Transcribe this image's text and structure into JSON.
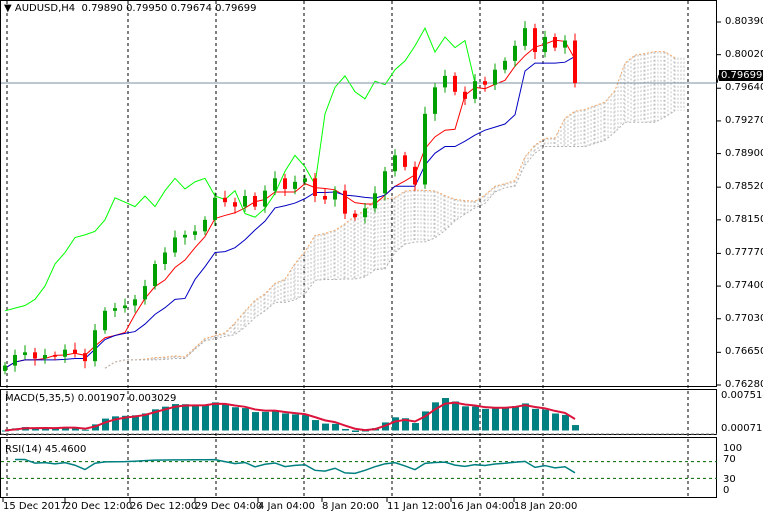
{
  "header": {
    "symbol": "AUDUSD,H4",
    "ohlc": "0.79890 0.79950 0.79674 0.79699"
  },
  "macd": {
    "label": "MACD(5,35,5) 0.001907 0.003029",
    "axis": [
      "0.007514",
      "0.000713"
    ]
  },
  "rsi": {
    "label": "RSI(14) 45.4600",
    "axis": [
      "100",
      "70",
      "30",
      "0"
    ]
  },
  "colors": {
    "bull": "#00a000",
    "bear": "#ff0000",
    "tenkan": "#ff0000",
    "kijun": "#0000c0",
    "chikou": "#00ff00",
    "spanA": "#f4a460",
    "spanB": "#b0b0b0",
    "macd_hist": "#008080",
    "macd_signal": "#dc143c",
    "rsi": "#008080"
  },
  "chart_data": {
    "type": "candlestick",
    "current_price": "0.79699",
    "y_ticks": [
      "0.80390",
      "0.80020",
      "0.79640",
      "0.79270",
      "0.78900",
      "0.78520",
      "0.78150",
      "0.77770",
      "0.77400",
      "0.77030",
      "0.76650",
      "0.76280"
    ],
    "ylim": [
      0.7628,
      0.8039
    ],
    "x_ticks": [
      "15 Dec 2017",
      "20 Dec 12:00",
      "26 Dec 12:00",
      "29 Dec 04:00",
      "4 Jan 04:00",
      "8 Jan 20:00",
      "11 Jan 12:00",
      "16 Jan 04:00",
      "18 Jan 20:00"
    ],
    "closes": [
      0.765,
      0.7662,
      0.7665,
      0.7658,
      0.7662,
      0.766,
      0.7668,
      0.7664,
      0.7655,
      0.769,
      0.7712,
      0.7715,
      0.7718,
      0.7725,
      0.774,
      0.7765,
      0.7778,
      0.7795,
      0.7798,
      0.7802,
      0.7815,
      0.784,
      0.7835,
      0.783,
      0.7842,
      0.783,
      0.7848,
      0.7862,
      0.785,
      0.7858,
      0.7862,
      0.7842,
      0.7838,
      0.7848,
      0.7822,
      0.7818,
      0.7828,
      0.7845,
      0.787,
      0.7888,
      0.7875,
      0.7855,
      0.7935,
      0.7965,
      0.7978,
      0.796,
      0.7952,
      0.7972,
      0.7968,
      0.7985,
      0.7995,
      0.8012,
      0.8032,
      0.8005,
      0.8022,
      0.801,
      0.8018,
      0.79699
    ],
    "grid": "vertical-dashed"
  }
}
